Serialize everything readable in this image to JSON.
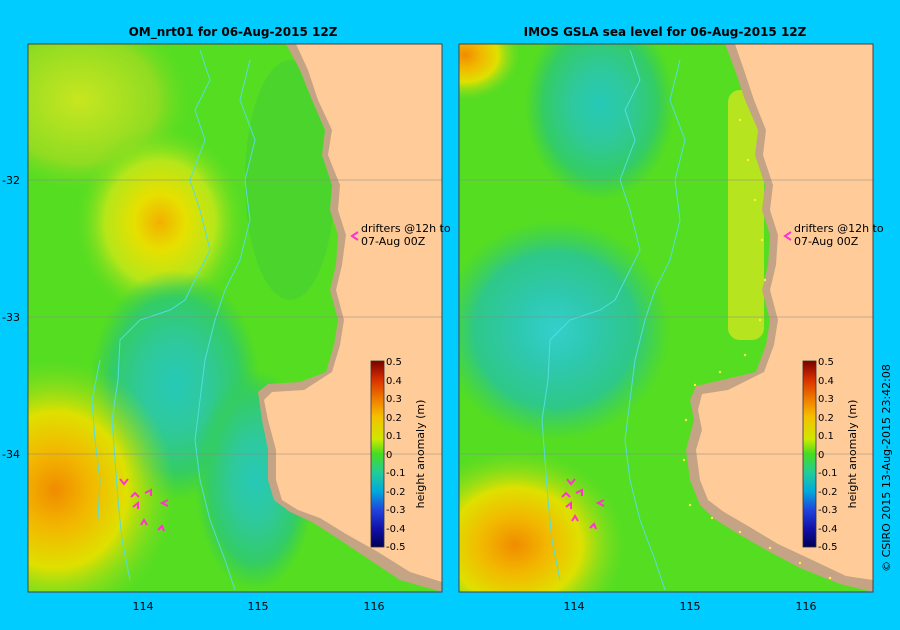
{
  "panels": [
    {
      "id": "left",
      "title": "OM_nrt01  for 06-Aug-2015 12Z"
    },
    {
      "id": "right",
      "title": "IMOS GSLA sea level  for 06-Aug-2015 12Z"
    }
  ],
  "axes": {
    "lat_ticks": [
      "-32",
      "-33",
      "-34"
    ],
    "lon_ticks": [
      "114",
      "115",
      "116"
    ]
  },
  "annotation": {
    "line1": "drifters @12h to",
    "line2": "07-Aug 00Z"
  },
  "colorbar": {
    "label": "height anomaly (m)",
    "ticks": [
      "0.5",
      "0.4",
      "0.3",
      "0.2",
      "0.1",
      "0",
      "-0.1",
      "-0.2",
      "-0.3",
      "-0.4",
      "-0.5"
    ]
  },
  "credit": "© CSIRO 2015   13-Aug-2015 23:42:08",
  "colors": {
    "background": "#00ccff",
    "land": "#ffcc99",
    "coast_shelf": "#c4a484",
    "drifter": "#ff33cc",
    "track": "#55dddd",
    "grid": "#888888"
  }
}
